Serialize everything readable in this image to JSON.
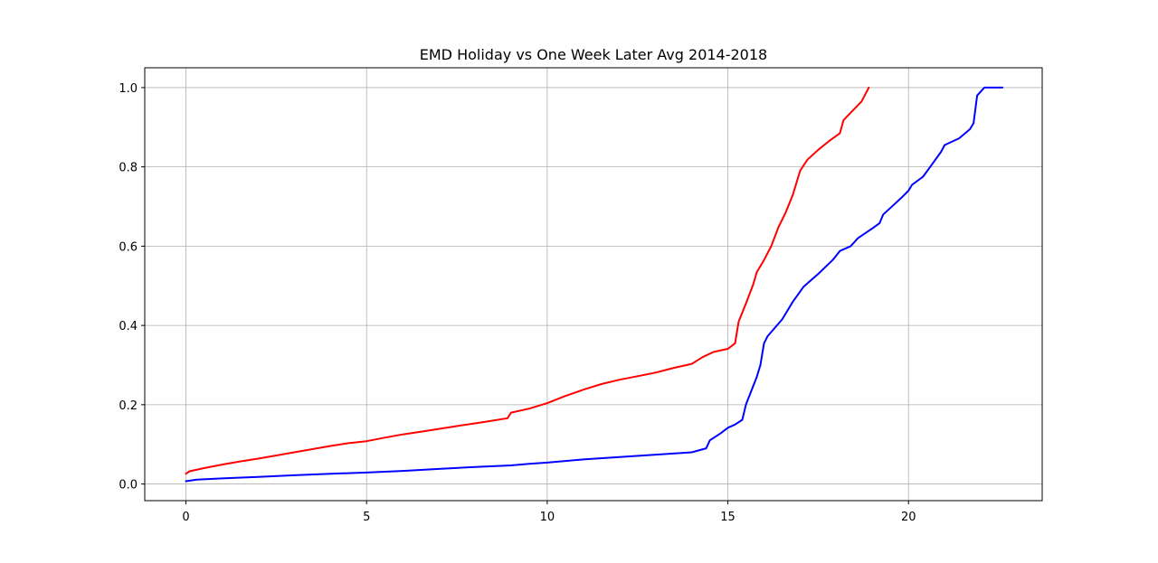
{
  "chart_data": {
    "type": "line",
    "title": "EMD Holiday vs One Week Later Avg 2014-2018",
    "xlabel": "",
    "ylabel": "",
    "xlim": [
      -1.14,
      23.7
    ],
    "ylim": [
      -0.042,
      1.05
    ],
    "xticks": [
      0,
      5,
      10,
      15,
      20
    ],
    "xtick_labels": [
      "0",
      "5",
      "10",
      "15",
      "20"
    ],
    "yticks": [
      0.0,
      0.2,
      0.4,
      0.6,
      0.8,
      1.0
    ],
    "ytick_labels": [
      "0.0",
      "0.2",
      "0.4",
      "0.6",
      "0.8",
      "1.0"
    ],
    "grid": true,
    "legend": "none",
    "series": [
      {
        "color": "#ff0000",
        "points": [
          [
            0.0,
            0.026
          ],
          [
            0.1,
            0.032
          ],
          [
            0.5,
            0.04
          ],
          [
            1.0,
            0.049
          ],
          [
            1.5,
            0.057
          ],
          [
            2.0,
            0.064
          ],
          [
            2.5,
            0.072
          ],
          [
            3.0,
            0.08
          ],
          [
            3.5,
            0.088
          ],
          [
            4.0,
            0.096
          ],
          [
            4.5,
            0.103
          ],
          [
            5.0,
            0.108
          ],
          [
            5.5,
            0.117
          ],
          [
            6.0,
            0.125
          ],
          [
            6.5,
            0.132
          ],
          [
            7.0,
            0.139
          ],
          [
            7.5,
            0.146
          ],
          [
            8.0,
            0.153
          ],
          [
            8.5,
            0.16
          ],
          [
            8.9,
            0.166
          ],
          [
            9.0,
            0.18
          ],
          [
            9.5,
            0.19
          ],
          [
            10.0,
            0.204
          ],
          [
            10.5,
            0.222
          ],
          [
            11.0,
            0.238
          ],
          [
            11.5,
            0.252
          ],
          [
            12.0,
            0.263
          ],
          [
            12.5,
            0.272
          ],
          [
            13.0,
            0.281
          ],
          [
            13.5,
            0.293
          ],
          [
            14.0,
            0.303
          ],
          [
            14.3,
            0.32
          ],
          [
            14.6,
            0.333
          ],
          [
            15.0,
            0.341
          ],
          [
            15.2,
            0.355
          ],
          [
            15.3,
            0.41
          ],
          [
            15.5,
            0.455
          ],
          [
            15.7,
            0.503
          ],
          [
            15.8,
            0.534
          ],
          [
            16.0,
            0.565
          ],
          [
            16.2,
            0.6
          ],
          [
            16.4,
            0.648
          ],
          [
            16.6,
            0.685
          ],
          [
            16.8,
            0.73
          ],
          [
            17.0,
            0.79
          ],
          [
            17.2,
            0.818
          ],
          [
            17.5,
            0.843
          ],
          [
            17.8,
            0.865
          ],
          [
            18.1,
            0.885
          ],
          [
            18.2,
            0.918
          ],
          [
            18.5,
            0.946
          ],
          [
            18.7,
            0.965
          ],
          [
            18.9,
            1.0
          ]
        ]
      },
      {
        "color": "#0000ff",
        "points": [
          [
            0.0,
            0.007
          ],
          [
            0.3,
            0.011
          ],
          [
            1.0,
            0.014
          ],
          [
            2.0,
            0.018
          ],
          [
            3.0,
            0.022
          ],
          [
            4.0,
            0.026
          ],
          [
            5.0,
            0.029
          ],
          [
            6.0,
            0.033
          ],
          [
            7.0,
            0.038
          ],
          [
            8.0,
            0.043
          ],
          [
            9.0,
            0.047
          ],
          [
            9.5,
            0.051
          ],
          [
            10.0,
            0.054
          ],
          [
            10.5,
            0.058
          ],
          [
            11.0,
            0.062
          ],
          [
            12.0,
            0.068
          ],
          [
            13.0,
            0.074
          ],
          [
            14.0,
            0.08
          ],
          [
            14.4,
            0.09
          ],
          [
            14.5,
            0.11
          ],
          [
            14.8,
            0.128
          ],
          [
            15.0,
            0.142
          ],
          [
            15.2,
            0.15
          ],
          [
            15.4,
            0.162
          ],
          [
            15.5,
            0.2
          ],
          [
            15.8,
            0.27
          ],
          [
            15.9,
            0.3
          ],
          [
            16.0,
            0.355
          ],
          [
            16.1,
            0.373
          ],
          [
            16.5,
            0.415
          ],
          [
            16.8,
            0.46
          ],
          [
            17.1,
            0.498
          ],
          [
            17.5,
            0.53
          ],
          [
            17.9,
            0.565
          ],
          [
            18.1,
            0.588
          ],
          [
            18.4,
            0.6
          ],
          [
            18.6,
            0.62
          ],
          [
            19.0,
            0.645
          ],
          [
            19.2,
            0.658
          ],
          [
            19.3,
            0.68
          ],
          [
            19.6,
            0.705
          ],
          [
            19.8,
            0.722
          ],
          [
            20.0,
            0.74
          ],
          [
            20.1,
            0.755
          ],
          [
            20.4,
            0.775
          ],
          [
            20.6,
            0.8
          ],
          [
            20.9,
            0.838
          ],
          [
            21.0,
            0.855
          ],
          [
            21.4,
            0.872
          ],
          [
            21.7,
            0.895
          ],
          [
            21.8,
            0.91
          ],
          [
            21.9,
            0.98
          ],
          [
            22.1,
            1.0
          ],
          [
            22.6,
            1.0
          ]
        ]
      }
    ]
  }
}
